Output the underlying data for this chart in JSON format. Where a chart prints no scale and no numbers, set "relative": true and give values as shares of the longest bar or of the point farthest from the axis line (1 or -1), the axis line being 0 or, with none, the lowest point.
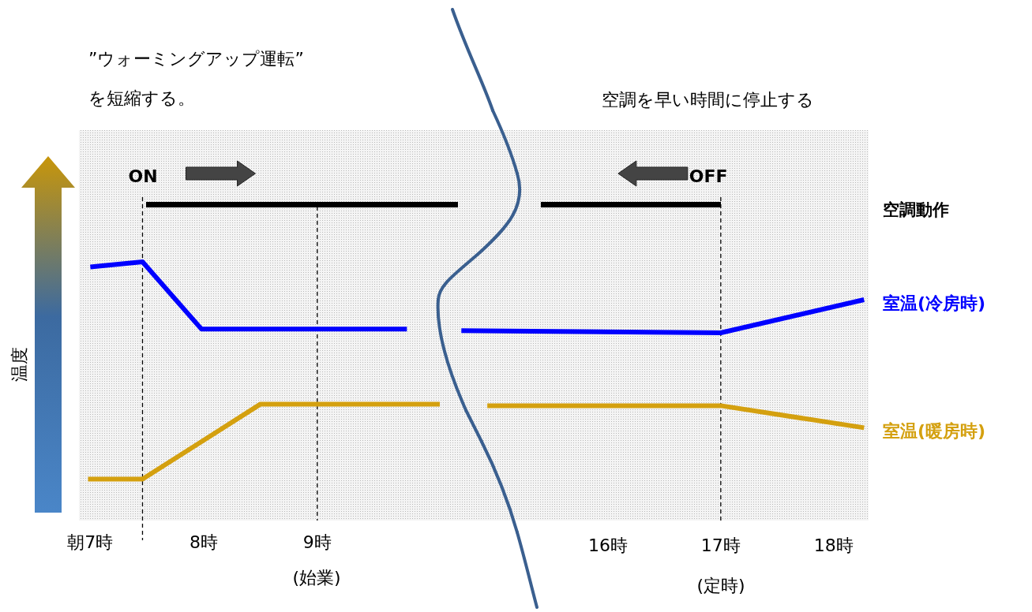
{
  "chart_data": [
    {
      "type": "line",
      "relative": true,
      "ylabel": "温度",
      "xlim": [
        6.9,
        10.24
      ],
      "xticks": [
        {
          "value": 7,
          "label": "朝7時"
        },
        {
          "value": 8,
          "label": "8時"
        },
        {
          "value": 9,
          "label": "9時"
        }
      ],
      "series": [
        {
          "color": "#0000ff",
          "x": [
            7,
            7.46,
            7.98,
            9.79
          ],
          "values": [
            0.98,
            1,
            0.74,
            0.74
          ]
        },
        {
          "color": "#d4a00f",
          "x": [
            6.98,
            7.46,
            8.5,
            10.08
          ],
          "values": [
            0.16,
            0.16,
            0.45,
            0.45
          ]
        }
      ],
      "ref_lines": [
        {
          "axis": "x",
          "value": 7.46,
          "label": "ON",
          "line_style": "dashed"
        },
        {
          "axis": "x",
          "value": 9,
          "label": null,
          "line_style": "dashed"
        }
      ],
      "annotations": [
        "”ウォーミングアップ運転”",
        "を短縮する。",
        "(始業)"
      ]
    },
    {
      "type": "line",
      "relative": true,
      "xlim": [
        14.67,
        18.31
      ],
      "xticks": [
        {
          "value": 16,
          "label": "16時"
        },
        {
          "value": 17,
          "label": "17時"
        },
        {
          "value": 18,
          "label": "18時"
        }
      ],
      "series": [
        {
          "name": "室温(冷房時)",
          "color": "#0000ff",
          "x": [
            14.7,
            17,
            18.27
          ],
          "values": [
            0.86,
            0.85,
            1
          ]
        },
        {
          "name": "室温(暖房時)",
          "color": "#d4a00f",
          "x": [
            14.93,
            17,
            18.27
          ],
          "values": [
            0.52,
            0.52,
            0.42
          ]
        }
      ],
      "ref_lines": [
        {
          "axis": "x",
          "value": 17,
          "label": "OFF",
          "line_style": "dashed"
        }
      ],
      "annotations": [
        "空調を早い時間に停止する",
        "(定時)",
        "空調動作"
      ]
    }
  ]
}
